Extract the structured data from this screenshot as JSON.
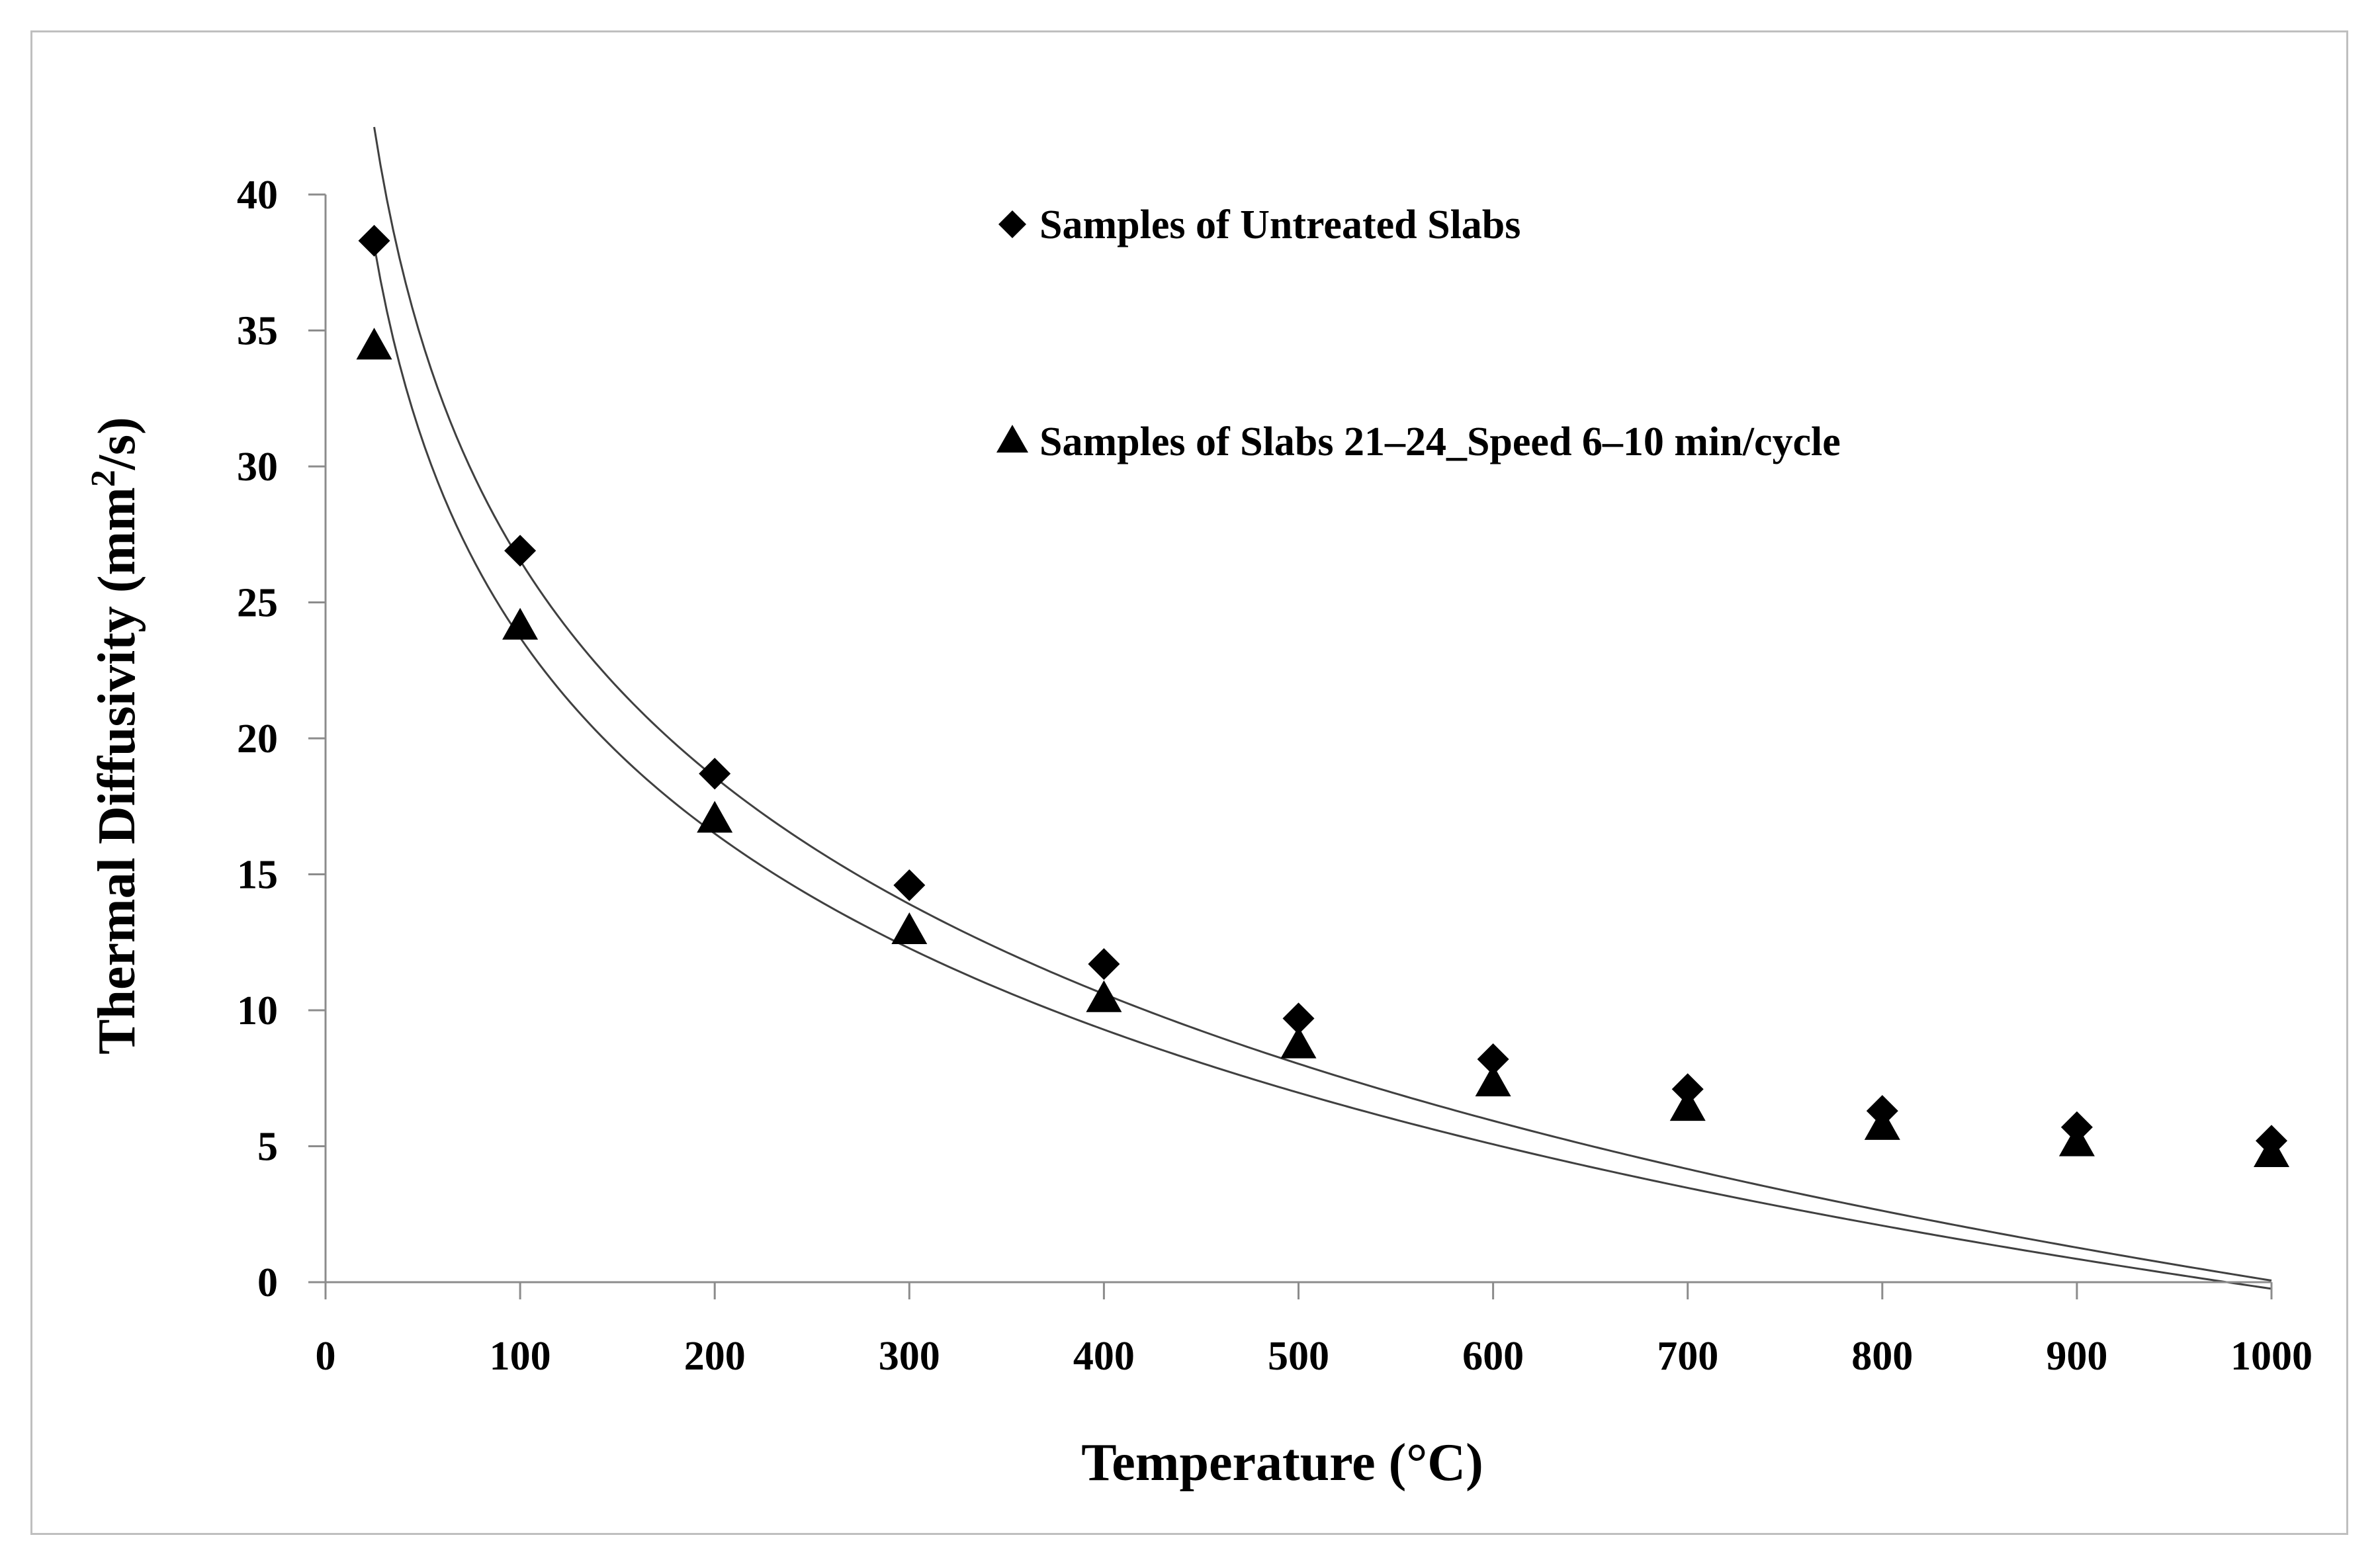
{
  "chart_data": {
    "type": "scatter",
    "title": "",
    "xlabel": "Temperature (°C)",
    "ylabel": {
      "prefix": "Thermal Diffusivity (mm",
      "superscript": "2",
      "suffix": "/s)"
    },
    "xlim": [
      0,
      1000
    ],
    "ylim": [
      0,
      40
    ],
    "xticks": [
      "0",
      "100",
      "200",
      "300",
      "400",
      "500",
      "600",
      "700",
      "800",
      "900",
      "1000"
    ],
    "yticks": [
      "0",
      "5",
      "10",
      "15",
      "20",
      "25",
      "30",
      "35",
      "40"
    ],
    "grid": false,
    "legend_position": "top-center",
    "series": [
      {
        "name": "Samples of Untreated Slabs",
        "marker": "diamond",
        "color": "#000000",
        "x": [
          25,
          100,
          200,
          300,
          400,
          500,
          600,
          700,
          800,
          900,
          1000
        ],
        "y": [
          38.3,
          26.9,
          18.7,
          14.6,
          11.7,
          9.7,
          8.2,
          7.1,
          6.3,
          5.7,
          5.2
        ],
        "trendline": {
          "type": "logarithmic",
          "a": 79.5,
          "b": -11.5
        }
      },
      {
        "name": "Samples of Slabs 21–24_Speed 6–10 min/cycle",
        "marker": "triangle",
        "color": "#000000",
        "x": [
          25,
          100,
          200,
          300,
          400,
          500,
          600,
          700,
          800,
          900,
          1000
        ],
        "y": [
          34.4,
          24.1,
          17.0,
          12.9,
          10.4,
          8.7,
          7.3,
          6.4,
          5.7,
          5.1,
          4.7
        ],
        "trendline": {
          "type": "logarithmic",
          "a": 71.6,
          "b": -10.4
        }
      }
    ]
  }
}
